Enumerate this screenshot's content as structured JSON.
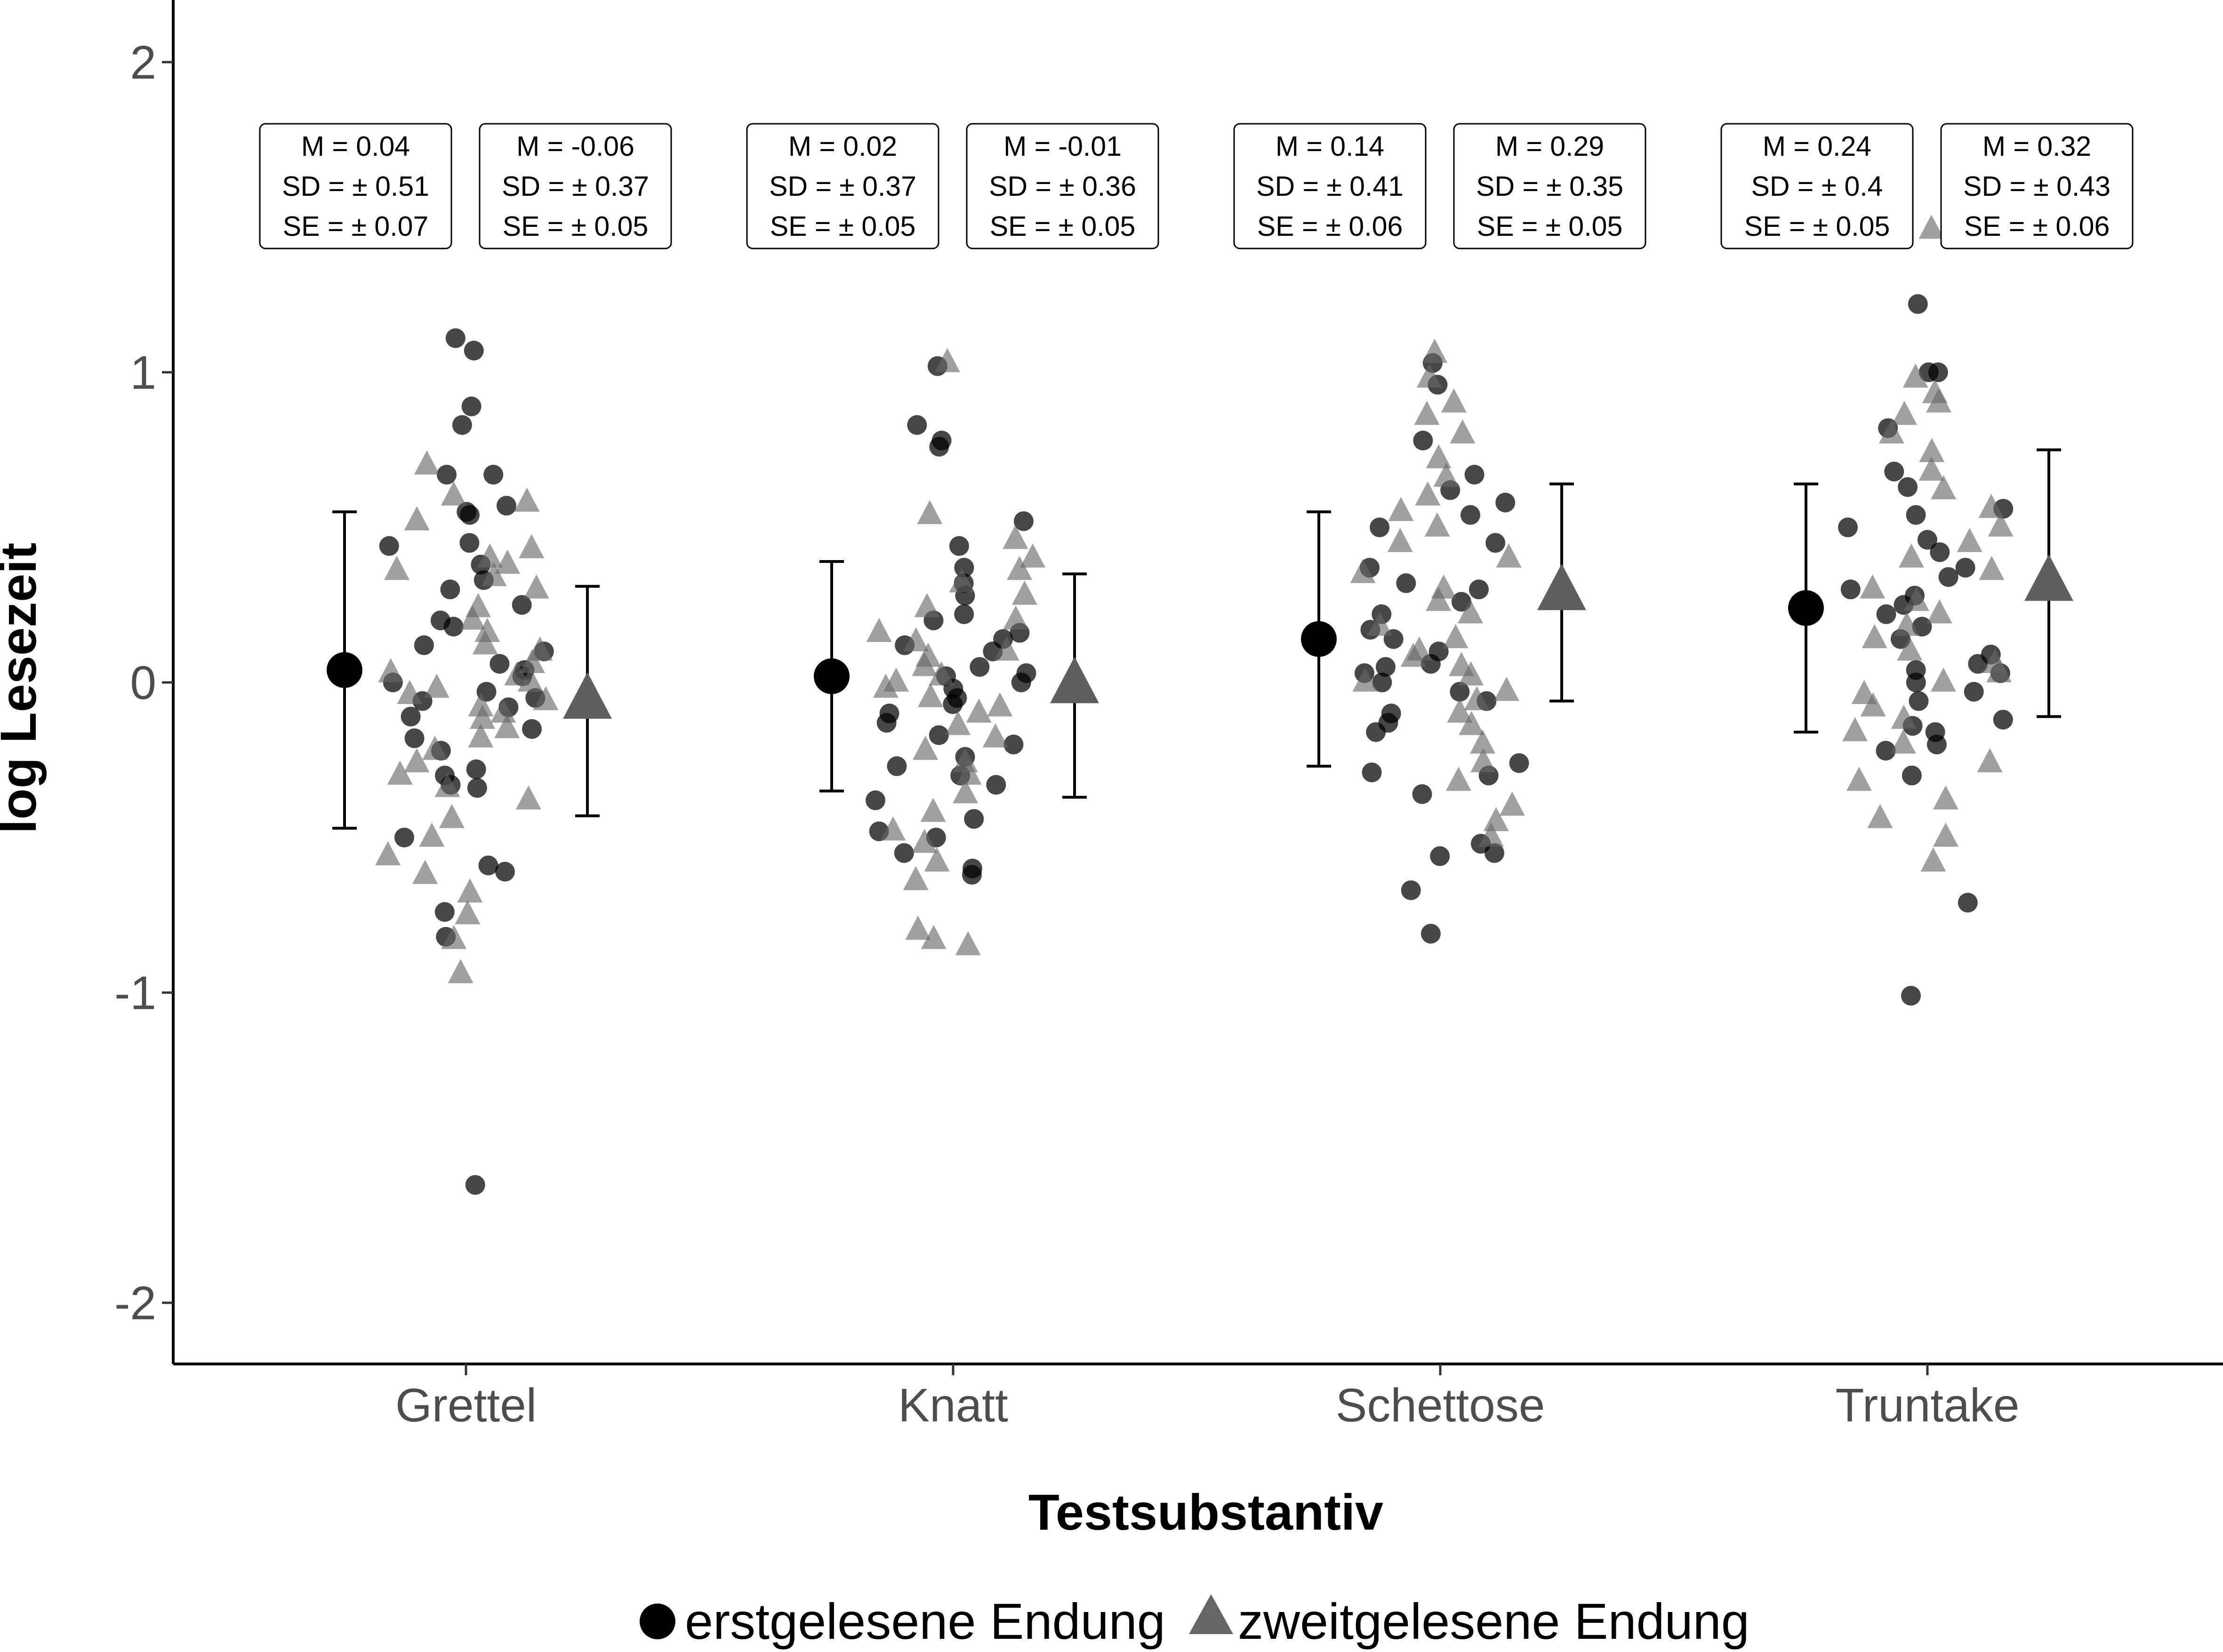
{
  "chart_data": {
    "type": "scatter",
    "title": "",
    "xlabel": "Testsubstantiv",
    "ylabel": "log Lesezeit",
    "categories": [
      "Grettel",
      "Knatt",
      "Schettose",
      "Truntake"
    ],
    "ylim": [
      -2.2,
      2.2
    ],
    "yticks": [
      -2,
      -1,
      0,
      1,
      2
    ],
    "ytick_labels": [
      "-2",
      "-1",
      "0",
      "1",
      "2"
    ],
    "grid": false,
    "legend_position": "bottom",
    "series": [
      {
        "name": "erstgelesene Endung",
        "marker": "circle",
        "color": "#000000",
        "summary": [
          {
            "category": "Grettel",
            "mean": 0.04,
            "sd": 0.51,
            "se": 0.07
          },
          {
            "category": "Knatt",
            "mean": 0.02,
            "sd": 0.37,
            "se": 0.05
          },
          {
            "category": "Schettose",
            "mean": 0.14,
            "sd": 0.41,
            "se": 0.06
          },
          {
            "category": "Truntake",
            "mean": 0.24,
            "sd": 0.4,
            "se": 0.05
          }
        ],
        "points": [
          [
            1.11,
            1.07,
            0.89,
            0.83,
            0.67,
            0.67,
            0.57,
            0.55,
            0.54,
            0.45,
            0.44,
            0.38,
            0.33,
            0.3,
            0.25,
            0.2,
            0.18,
            0.12,
            0.1,
            0.06,
            0.04,
            0.02,
            0.0,
            -0.03,
            -0.05,
            -0.06,
            -0.08,
            -0.11,
            -0.15,
            -0.18,
            -0.22,
            -0.28,
            -0.3,
            -0.33,
            -0.34,
            -0.5,
            -0.59,
            -0.61,
            -0.74,
            -0.82,
            -1.62
          ],
          [
            1.02,
            0.83,
            0.78,
            0.76,
            0.52,
            0.44,
            0.37,
            0.32,
            0.28,
            0.22,
            0.2,
            0.16,
            0.14,
            0.12,
            0.1,
            0.05,
            0.03,
            0.02,
            0.0,
            -0.02,
            -0.05,
            -0.07,
            -0.1,
            -0.13,
            -0.17,
            -0.2,
            -0.24,
            -0.27,
            -0.3,
            -0.33,
            -0.38,
            -0.44,
            -0.48,
            -0.5,
            -0.55,
            -0.6,
            -0.62
          ],
          [
            1.03,
            0.96,
            0.78,
            0.67,
            0.62,
            0.58,
            0.54,
            0.5,
            0.45,
            0.37,
            0.32,
            0.3,
            0.26,
            0.22,
            0.17,
            0.14,
            0.1,
            0.06,
            0.05,
            0.03,
            0.0,
            -0.03,
            -0.06,
            -0.1,
            -0.13,
            -0.16,
            -0.26,
            -0.29,
            -0.3,
            -0.36,
            -0.52,
            -0.55,
            -0.56,
            -0.67,
            -0.81
          ],
          [
            1.22,
            1.0,
            1.0,
            0.82,
            0.68,
            0.63,
            0.56,
            0.54,
            0.5,
            0.46,
            0.42,
            0.37,
            0.34,
            0.3,
            0.28,
            0.25,
            0.22,
            0.18,
            0.14,
            0.09,
            0.06,
            0.04,
            0.03,
            0.0,
            -0.03,
            -0.06,
            -0.12,
            -0.14,
            -0.16,
            -0.2,
            -0.22,
            -0.3,
            -0.71,
            -1.01
          ]
        ]
      },
      {
        "name": "zweitgelesene Endung",
        "marker": "triangle",
        "color": "#666666",
        "summary": [
          {
            "category": "Grettel",
            "mean": -0.06,
            "sd": 0.37,
            "se": 0.05
          },
          {
            "category": "Knatt",
            "mean": -0.01,
            "sd": 0.36,
            "se": 0.05
          },
          {
            "category": "Schettose",
            "mean": 0.29,
            "sd": 0.35,
            "se": 0.05
          },
          {
            "category": "Truntake",
            "mean": 0.32,
            "sd": 0.43,
            "se": 0.06
          }
        ],
        "points": [
          [
            0.7,
            0.6,
            0.58,
            0.52,
            0.43,
            0.4,
            0.38,
            0.36,
            0.34,
            0.3,
            0.24,
            0.2,
            0.16,
            0.12,
            0.1,
            0.06,
            0.03,
            0.02,
            0.0,
            -0.02,
            -0.04,
            -0.06,
            -0.08,
            -0.1,
            -0.12,
            -0.15,
            -0.18,
            -0.22,
            -0.26,
            -0.3,
            -0.34,
            -0.38,
            -0.44,
            -0.5,
            -0.56,
            -0.62,
            -0.68,
            -0.75,
            -0.83,
            -0.94
          ],
          [
            1.03,
            0.54,
            0.46,
            0.4,
            0.36,
            0.32,
            0.28,
            0.24,
            0.2,
            0.16,
            0.13,
            0.1,
            0.08,
            0.05,
            0.02,
            0.0,
            -0.02,
            -0.05,
            -0.08,
            -0.1,
            -0.14,
            -0.18,
            -0.22,
            -0.26,
            -0.3,
            -0.36,
            -0.42,
            -0.48,
            -0.52,
            -0.58,
            -0.64,
            -0.8,
            -0.83,
            -0.85
          ],
          [
            1.06,
            0.98,
            0.9,
            0.86,
            0.8,
            0.72,
            0.66,
            0.6,
            0.55,
            0.5,
            0.45,
            0.4,
            0.35,
            0.3,
            0.26,
            0.22,
            0.18,
            0.14,
            0.1,
            0.08,
            0.05,
            0.02,
            0.0,
            -0.03,
            -0.06,
            -0.1,
            -0.14,
            -0.2,
            -0.26,
            -0.32,
            -0.4,
            -0.45,
            -0.5
          ],
          [
            1.46,
            0.98,
            0.93,
            0.9,
            0.86,
            0.8,
            0.74,
            0.68,
            0.62,
            0.56,
            0.5,
            0.45,
            0.4,
            0.36,
            0.3,
            0.26,
            0.22,
            0.18,
            0.14,
            0.1,
            0.06,
            0.03,
            0.0,
            -0.04,
            -0.08,
            -0.12,
            -0.16,
            -0.2,
            -0.26,
            -0.32,
            -0.38,
            -0.44,
            -0.5,
            -0.58
          ]
        ]
      }
    ]
  },
  "stats_label_prefixes": {
    "mean": "M = ",
    "sd": "SD = ±  ",
    "se": "SE = ±  "
  }
}
